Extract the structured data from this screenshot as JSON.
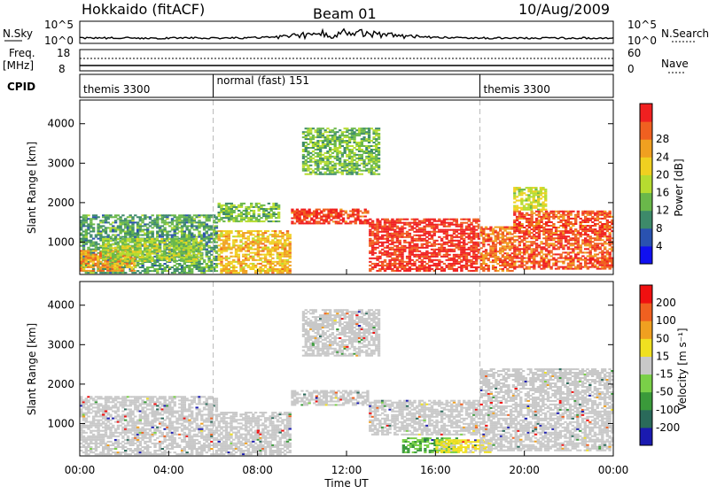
{
  "header": {
    "station": "Hokkaido (fitACF)",
    "beam": "Beam 01",
    "date": "10/Aug/2009"
  },
  "strip": {
    "nsky_label": "N.Sky",
    "nsky_ticks": [
      "10^5",
      "10^0"
    ],
    "nsearch_label": "N.Search",
    "nsearch_ticks": [
      "10^5",
      "10^0"
    ],
    "freq_label": "Freq.",
    "freq_unit": "[MHz]",
    "freq_ticks": [
      "18",
      "8"
    ],
    "nave_label": "Nave",
    "nave_ticks": [
      "60",
      "0"
    ],
    "cpid_label": "CPID",
    "cpid_segments": [
      {
        "label": "themis 3300",
        "start_hour": 0
      },
      {
        "label": "normal (fast) 151",
        "start_hour": 6
      },
      {
        "label": "themis 3300",
        "start_hour": 18
      }
    ]
  },
  "chart_data": [
    {
      "type": "heatmap",
      "title": "",
      "xlabel": "Time UT",
      "ylabel": "Slant Range [km]",
      "x_range_hours": [
        0,
        24
      ],
      "x_ticks": [
        "00:00",
        "04:00",
        "08:00",
        "12:00",
        "16:00",
        "20:00",
        "00:00"
      ],
      "y_ticks": [
        1000,
        2000,
        3000,
        4000
      ],
      "ylim": [
        180,
        4600
      ],
      "colorbar": {
        "label": "Power [dB]",
        "ticks": [
          "4",
          "8",
          "12",
          "16",
          "20",
          "24",
          "28"
        ],
        "range": [
          0,
          30
        ],
        "colors": [
          "#1010f0",
          "#2a52b0",
          "#3d8a6a",
          "#6ab84a",
          "#b6dc30",
          "#f0d020",
          "#f0a020",
          "#f06020",
          "#f02020"
        ]
      },
      "regions": [
        {
          "t0": 0.0,
          "t1": 6.2,
          "r0": 200,
          "r1": 1700,
          "value": 10
        },
        {
          "t0": 0.0,
          "t1": 2.5,
          "r0": 250,
          "r1": 800,
          "value": 22
        },
        {
          "t0": 1.0,
          "t1": 5.5,
          "r0": 500,
          "r1": 1100,
          "value": 14
        },
        {
          "t0": 6.2,
          "t1": 9.5,
          "r0": 200,
          "r1": 1300,
          "value": 20
        },
        {
          "t0": 6.2,
          "t1": 9.0,
          "r0": 1500,
          "r1": 2000,
          "value": 12
        },
        {
          "t0": 9.5,
          "t1": 13.0,
          "r0": 1450,
          "r1": 1850,
          "value": 27
        },
        {
          "t0": 10.0,
          "t1": 13.5,
          "r0": 2700,
          "r1": 3900,
          "value": 12
        },
        {
          "t0": 13.0,
          "t1": 18.0,
          "r0": 250,
          "r1": 1600,
          "value": 28
        },
        {
          "t0": 18.0,
          "t1": 19.5,
          "r0": 250,
          "r1": 1400,
          "value": 24
        },
        {
          "t0": 19.5,
          "t1": 24.0,
          "r0": 300,
          "r1": 1800,
          "value": 26
        },
        {
          "t0": 19.5,
          "t1": 21.0,
          "r0": 1800,
          "r1": 2400,
          "value": 16
        }
      ]
    },
    {
      "type": "heatmap",
      "title": "",
      "xlabel": "Time UT",
      "ylabel": "Slant Range [km]",
      "x_range_hours": [
        0,
        24
      ],
      "x_ticks": [
        "00:00",
        "04:00",
        "08:00",
        "12:00",
        "16:00",
        "20:00",
        "00:00"
      ],
      "y_ticks": [
        1000,
        2000,
        3000,
        4000
      ],
      "ylim": [
        180,
        4600
      ],
      "colorbar": {
        "label": "Velocity [m s⁻¹]",
        "ticks": [
          "200",
          "100",
          "50",
          "15",
          "-15",
          "-50",
          "-100",
          "-200"
        ],
        "range": [
          -250,
          250
        ],
        "colors": [
          "#1a1ab0",
          "#2a6a5a",
          "#3a9a3a",
          "#7ad048",
          "#c8c8c8",
          "#f0e020",
          "#f0a020",
          "#f06020",
          "#f01010"
        ]
      },
      "regions": [
        {
          "t0": 0.0,
          "t1": 6.2,
          "r0": 200,
          "r1": 1700,
          "value": 0
        },
        {
          "t0": 6.2,
          "t1": 9.5,
          "r0": 200,
          "r1": 1300,
          "value": 0
        },
        {
          "t0": 9.5,
          "t1": 13.0,
          "r0": 1450,
          "r1": 1850,
          "value": 0
        },
        {
          "t0": 10.0,
          "t1": 13.5,
          "r0": 2700,
          "r1": 3900,
          "value": 0
        },
        {
          "t0": 13.0,
          "t1": 18.0,
          "r0": 700,
          "r1": 1600,
          "value": 0
        },
        {
          "t0": 14.5,
          "t1": 17.0,
          "r0": 250,
          "r1": 650,
          "value": -80
        },
        {
          "t0": 16.0,
          "t1": 18.5,
          "r0": 250,
          "r1": 600,
          "value": 40
        },
        {
          "t0": 18.0,
          "t1": 24.0,
          "r0": 300,
          "r1": 2400,
          "value": 0
        }
      ]
    }
  ]
}
